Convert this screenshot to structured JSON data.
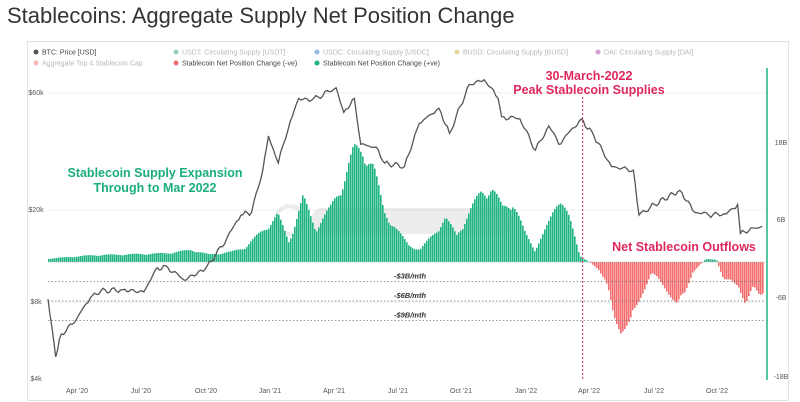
{
  "page": {
    "title": "Stablecoins: Aggregate Supply Net Position Change"
  },
  "legend": [
    {
      "label": "BTC: Price [USD]",
      "color": "#555555",
      "faded": false
    },
    {
      "label": "USDT: Circulating Supply [USDT]",
      "color": "#26a17b",
      "faded": true
    },
    {
      "label": "USDC: Circulating Supply [USDC]",
      "color": "#2775ca",
      "faded": true
    },
    {
      "label": "BUSD: Circulating Supply [BUSD]",
      "color": "#d4b23a",
      "faded": true
    },
    {
      "label": "DAI: Circulating Supply [DAI]",
      "color": "#b040b0",
      "faded": true
    },
    {
      "label": "Aggregate Top 4 Stablecoin Cap",
      "color": "#f07070",
      "faded": true
    },
    {
      "label": "Stablecoin Net Position Change (-ve)",
      "color": "#f26d6d",
      "faded": false
    },
    {
      "label": "Stablecoin Net Position Change (+ve)",
      "color": "#1db383",
      "faded": false
    }
  ],
  "annotations": {
    "expansion_line1": "Stablecoin Supply Expansion",
    "expansion_line2": "Through to Mar 2022",
    "peak_line1": "30-March-2022",
    "peak_line2": "Peak Stablecoin Supplies",
    "outflows": "Net Stablecoin Outflows"
  },
  "colors": {
    "positive": "#1db383",
    "negative": "#f26d6d",
    "price": "#555555",
    "peak": "#e0285c",
    "expansion": "#1aae7a",
    "right_axis": "#1db383"
  },
  "chart_data": {
    "type": "bar",
    "x_ticks": [
      "Apr '20",
      "Jul '20",
      "Oct '20",
      "Jan '21",
      "Apr '21",
      "Jul '21",
      "Oct '21",
      "Jan '22",
      "Apr '22",
      "Jul '22",
      "Oct '22"
    ],
    "left_axis": {
      "scale": "log",
      "ticks": [
        "$4k",
        "$8k",
        "$20k",
        "$60k"
      ],
      "ylim": [
        4000,
        60000
      ]
    },
    "right_axis": {
      "ticks": [
        "18B",
        "6B",
        "-6B",
        "-18B"
      ],
      "ylim": [
        -18,
        18
      ]
    },
    "threshold_lines": [
      {
        "label": "-$3B/mth",
        "value": -3
      },
      {
        "label": "-$6B/mth",
        "value": -6
      },
      {
        "label": "-$9B/mth",
        "value": -9
      }
    ],
    "peak_date": "2022-03-30",
    "series": [
      {
        "name": "BTC: Price [USD]",
        "type": "line",
        "points": [
          [
            "2020-03-01",
            8600
          ],
          [
            "2020-03-12",
            5000
          ],
          [
            "2020-03-20",
            6200
          ],
          [
            "2020-04-05",
            6800
          ],
          [
            "2020-04-30",
            8700
          ],
          [
            "2020-05-15",
            9300
          ],
          [
            "2020-06-15",
            9400
          ],
          [
            "2020-07-15",
            9200
          ],
          [
            "2020-07-31",
            11300
          ],
          [
            "2020-08-15",
            11800
          ],
          [
            "2020-09-10",
            10300
          ],
          [
            "2020-10-10",
            11400
          ],
          [
            "2020-10-25",
            13000
          ],
          [
            "2020-11-10",
            15300
          ],
          [
            "2020-11-30",
            19000
          ],
          [
            "2020-12-15",
            19500
          ],
          [
            "2020-12-31",
            29000
          ],
          [
            "2021-01-08",
            40000
          ],
          [
            "2021-01-22",
            31000
          ],
          [
            "2021-02-08",
            46000
          ],
          [
            "2021-02-20",
            57000
          ],
          [
            "2021-03-10",
            56000
          ],
          [
            "2021-04-14",
            63000
          ],
          [
            "2021-04-25",
            50000
          ],
          [
            "2021-05-10",
            57000
          ],
          [
            "2021-05-19",
            37000
          ],
          [
            "2021-06-10",
            36000
          ],
          [
            "2021-06-22",
            31000
          ],
          [
            "2021-07-20",
            30000
          ],
          [
            "2021-08-10",
            45000
          ],
          [
            "2021-09-07",
            52000
          ],
          [
            "2021-09-22",
            41000
          ],
          [
            "2021-10-20",
            65000
          ],
          [
            "2021-11-10",
            68000
          ],
          [
            "2021-11-30",
            57000
          ],
          [
            "2021-12-05",
            48000
          ],
          [
            "2021-12-31",
            47000
          ],
          [
            "2022-01-22",
            35000
          ],
          [
            "2022-02-10",
            44000
          ],
          [
            "2022-02-24",
            37000
          ],
          [
            "2022-03-28",
            47000
          ],
          [
            "2022-04-15",
            40000
          ],
          [
            "2022-05-10",
            30000
          ],
          [
            "2022-06-10",
            29000
          ],
          [
            "2022-06-18",
            19000
          ],
          [
            "2022-07-10",
            21000
          ],
          [
            "2022-08-15",
            24000
          ],
          [
            "2022-09-05",
            19500
          ],
          [
            "2022-09-25",
            19000
          ],
          [
            "2022-10-20",
            19200
          ],
          [
            "2022-11-05",
            21000
          ],
          [
            "2022-11-09",
            16000
          ],
          [
            "2022-11-30",
            16800
          ],
          [
            "2022-12-10",
            17100
          ]
        ]
      },
      {
        "name": "Stablecoin Net Position Change",
        "type": "bar",
        "unit": "USD billions per month",
        "points": [
          [
            "2020-03-01",
            0.5
          ],
          [
            "2020-05-01",
            1.0
          ],
          [
            "2020-07-15",
            1.2
          ],
          [
            "2020-08-15",
            1.3
          ],
          [
            "2020-09-20",
            1.8
          ],
          [
            "2020-10-15",
            1.1
          ],
          [
            "2020-11-15",
            1.5
          ],
          [
            "2020-12-05",
            2.2
          ],
          [
            "2020-12-31",
            4.8
          ],
          [
            "2021-01-20",
            7.0
          ],
          [
            "2021-02-05",
            3.0
          ],
          [
            "2021-02-25",
            9.5
          ],
          [
            "2021-03-15",
            5.0
          ],
          [
            "2021-04-05",
            8.0
          ],
          [
            "2021-04-25",
            12.5
          ],
          [
            "2021-05-08",
            16.5
          ],
          [
            "2021-05-22",
            16.8
          ],
          [
            "2021-06-05",
            14.0
          ],
          [
            "2021-06-20",
            7.5
          ],
          [
            "2021-07-10",
            4.5
          ],
          [
            "2021-07-25",
            2.5
          ],
          [
            "2021-08-10",
            1.8
          ],
          [
            "2021-08-28",
            4.0
          ],
          [
            "2021-09-15",
            6.5
          ],
          [
            "2021-10-01",
            4.0
          ],
          [
            "2021-10-20",
            7.5
          ],
          [
            "2021-11-05",
            10.5
          ],
          [
            "2021-11-20",
            11.0
          ],
          [
            "2021-12-05",
            8.0
          ],
          [
            "2021-12-20",
            9.0
          ],
          [
            "2022-01-05",
            4.5
          ],
          [
            "2022-01-20",
            1.8
          ],
          [
            "2022-02-10",
            6.0
          ],
          [
            "2022-02-25",
            10.0
          ],
          [
            "2022-03-10",
            6.5
          ],
          [
            "2022-03-25",
            0.9
          ],
          [
            "2022-04-05",
            0.2
          ],
          [
            "2022-04-20",
            -1.0
          ],
          [
            "2022-05-01",
            -3.0
          ],
          [
            "2022-05-12",
            -8.0
          ],
          [
            "2022-05-22",
            -10.0
          ],
          [
            "2022-06-05",
            -9.0
          ],
          [
            "2022-06-20",
            -5.0
          ],
          [
            "2022-07-05",
            -1.5
          ],
          [
            "2022-07-25",
            -4.0
          ],
          [
            "2022-08-10",
            -6.2
          ],
          [
            "2022-08-20",
            -5.0
          ],
          [
            "2022-09-01",
            -1.5
          ],
          [
            "2022-09-20",
            0.5
          ],
          [
            "2022-10-05",
            0.3
          ],
          [
            "2022-10-15",
            -2.5
          ],
          [
            "2022-11-05",
            -3.5
          ],
          [
            "2022-11-15",
            -6.0
          ],
          [
            "2022-11-25",
            -4.0
          ],
          [
            "2022-12-05",
            -5.0
          ],
          [
            "2022-12-10",
            -4.5
          ]
        ]
      }
    ]
  }
}
